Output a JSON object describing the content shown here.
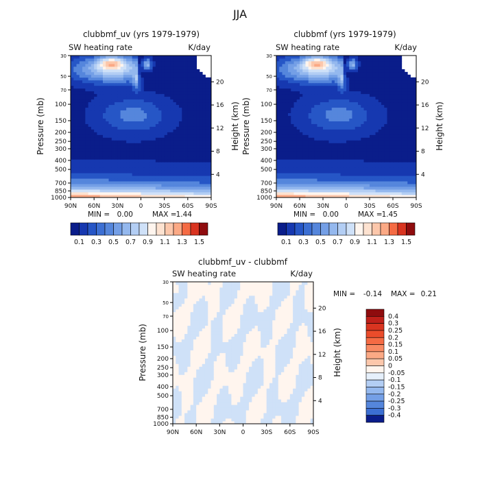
{
  "season_title": "JJA",
  "colors": {
    "positive": [
      "#fff5ee",
      "#fde2d0",
      "#fcc7ab",
      "#fba985",
      "#f98a63",
      "#f56b44",
      "#ea4c2b",
      "#d93420",
      "#c0201a",
      "#8f0c0e"
    ],
    "negative": [
      "#e6f0fb",
      "#cfe1f8",
      "#b3cef4",
      "#94b8ee",
      "#749fe6",
      "#5586dc",
      "#3c6fd3",
      "#2656c6",
      "#1638b0",
      "#0a1d8a"
    ]
  },
  "chart_data": [
    {
      "type": "heatmap",
      "title": "clubbmf_uv (yrs 1979-1979)",
      "variable_label": "SW heating rate",
      "units": "K/day",
      "xlabel": "",
      "ylabel": "Pressure (mb)",
      "y2label": "Height (km)",
      "x_ticks": [
        "90N",
        "60N",
        "30N",
        "0",
        "30S",
        "60S",
        "90S"
      ],
      "x_range": [
        90,
        -90
      ],
      "y_ticks": [
        30,
        50,
        70,
        100,
        150,
        200,
        250,
        300,
        400,
        500,
        700,
        850,
        1000
      ],
      "y_range": [
        1000,
        30
      ],
      "height_ticks": [
        20,
        16,
        12,
        8,
        4
      ],
      "stats": {
        "min_label": "MIN =",
        "min": "0.00",
        "max_label": "MAX =",
        "max": "1.44"
      },
      "colorbar": {
        "orientation": "horizontal",
        "levels": [
          0.1,
          0.2,
          0.3,
          0.4,
          0.5,
          0.6,
          0.7,
          0.8,
          0.9,
          1.0,
          1.1,
          1.2,
          1.3,
          1.4,
          1.5
        ],
        "labels": [
          "0.1",
          "0.3",
          "0.5",
          "0.7",
          "0.9",
          "1.1",
          "1.3",
          "1.5"
        ]
      }
    },
    {
      "type": "heatmap",
      "title": "clubbmf (yrs 1979-1979)",
      "variable_label": "SW heating rate",
      "units": "K/day",
      "xlabel": "",
      "ylabel": "Pressure (mb)",
      "y2label": "Height (km)",
      "x_ticks": [
        "90N",
        "60N",
        "30N",
        "0",
        "30S",
        "60S",
        "90S"
      ],
      "x_range": [
        90,
        -90
      ],
      "y_ticks": [
        30,
        50,
        70,
        100,
        150,
        200,
        250,
        300,
        400,
        500,
        700,
        850,
        1000
      ],
      "y_range": [
        1000,
        30
      ],
      "height_ticks": [
        20,
        16,
        12,
        8,
        4
      ],
      "stats": {
        "min_label": "MIN =",
        "min": "0.00",
        "max_label": "MAX =",
        "max": "1.45"
      },
      "colorbar": {
        "orientation": "horizontal",
        "levels": [
          0.1,
          0.2,
          0.3,
          0.4,
          0.5,
          0.6,
          0.7,
          0.8,
          0.9,
          1.0,
          1.1,
          1.2,
          1.3,
          1.4,
          1.5
        ],
        "labels": [
          "0.1",
          "0.3",
          "0.5",
          "0.7",
          "0.9",
          "1.1",
          "1.3",
          "1.5"
        ]
      }
    },
    {
      "type": "heatmap",
      "title": "clubbmf_uv - clubbmf",
      "variable_label": "SW heating rate",
      "units": "K/day",
      "xlabel": "",
      "ylabel": "Pressure (mb)",
      "y2label": "Height (km)",
      "x_ticks": [
        "90N",
        "60N",
        "30N",
        "0",
        "30S",
        "60S",
        "90S"
      ],
      "x_range": [
        90,
        -90
      ],
      "y_ticks": [
        30,
        50,
        70,
        100,
        150,
        200,
        250,
        300,
        400,
        500,
        700,
        850,
        1000
      ],
      "y_range": [
        1000,
        30
      ],
      "height_ticks": [
        20,
        16,
        12,
        8,
        4
      ],
      "stats": {
        "min_label": "MIN =",
        "min": "-0.14",
        "max_label": "MAX =",
        "max": "0.21"
      },
      "colorbar": {
        "orientation": "vertical",
        "labels": [
          "0.4",
          "0.3",
          "0.25",
          "0.2",
          "0.15",
          "0.1",
          "0.05",
          "0",
          "-0.05",
          "-0.1",
          "-0.15",
          "-0.2",
          "-0.25",
          "-0.3",
          "-0.4"
        ]
      }
    }
  ]
}
